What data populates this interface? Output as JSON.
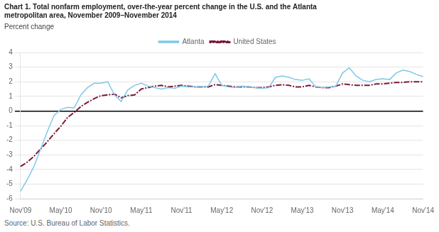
{
  "chart_data": {
    "type": "line",
    "title": [
      "Chart 1. Total nonfarm employment, over-the-year percent change in the U.S. and the Atlanta",
      "metropolitan area, November 2009–November 2014"
    ],
    "y_label": "Percent change",
    "source": "Source: U.S. Bureau of Labor Statistics.",
    "categories": [
      "Nov'09",
      null,
      null,
      null,
      null,
      null,
      "May'10",
      null,
      null,
      null,
      null,
      null,
      "Nov'10",
      null,
      null,
      null,
      null,
      null,
      "May'11",
      null,
      null,
      null,
      null,
      null,
      "Nov'11",
      null,
      null,
      null,
      null,
      null,
      "May'12",
      null,
      null,
      null,
      null,
      null,
      "Nov'12",
      null,
      null,
      null,
      null,
      null,
      "May'13",
      null,
      null,
      null,
      null,
      null,
      "Nov'13",
      null,
      null,
      null,
      null,
      null,
      "May'14",
      null,
      null,
      null,
      null,
      null,
      "Nov'14"
    ],
    "series": [
      {
        "name": "Atlanta",
        "color": "#7fc8e8",
        "line_style": "solid",
        "values": [
          -5.5,
          -4.7,
          -3.8,
          -2.6,
          -1.4,
          -0.3,
          0.1,
          0.25,
          0.2,
          1.1,
          1.6,
          1.9,
          1.9,
          2.0,
          1.1,
          0.65,
          1.45,
          1.75,
          1.9,
          1.7,
          1.6,
          1.5,
          1.6,
          1.55,
          1.7,
          1.65,
          1.65,
          1.65,
          1.7,
          2.55,
          1.75,
          1.65,
          1.6,
          1.7,
          1.65,
          1.6,
          1.55,
          1.6,
          2.3,
          2.4,
          2.3,
          2.15,
          2.1,
          2.2,
          1.65,
          1.6,
          1.65,
          1.7,
          2.6,
          2.95,
          2.4,
          2.1,
          2.0,
          2.15,
          2.2,
          2.15,
          2.6,
          2.8,
          2.7,
          2.5,
          2.35
        ]
      },
      {
        "name": "United States",
        "color": "#7b1a3a",
        "line_style": "dashdot",
        "values": [
          -3.8,
          -3.5,
          -3.1,
          -2.6,
          -2.1,
          -1.55,
          -1.05,
          -0.45,
          -0.1,
          0.3,
          0.6,
          0.85,
          1.05,
          1.1,
          1.15,
          0.9,
          1.05,
          1.1,
          1.5,
          1.6,
          1.7,
          1.75,
          1.65,
          1.7,
          1.75,
          1.7,
          1.65,
          1.65,
          1.65,
          1.8,
          1.75,
          1.7,
          1.65,
          1.65,
          1.65,
          1.6,
          1.6,
          1.65,
          1.75,
          1.8,
          1.75,
          1.65,
          1.65,
          1.75,
          1.65,
          1.6,
          1.6,
          1.7,
          1.85,
          1.8,
          1.75,
          1.75,
          1.75,
          1.85,
          1.85,
          1.9,
          1.95,
          1.95,
          2.0,
          2.0,
          2.0
        ]
      }
    ],
    "ylim": [
      -6.0,
      4.0
    ],
    "yticks": [
      -6.0,
      -5.0,
      -4.0,
      -3.0,
      -2.0,
      -1.0,
      0.0,
      1.0,
      2.0,
      3.0,
      4.0
    ],
    "grid": "y",
    "legend": "top"
  }
}
